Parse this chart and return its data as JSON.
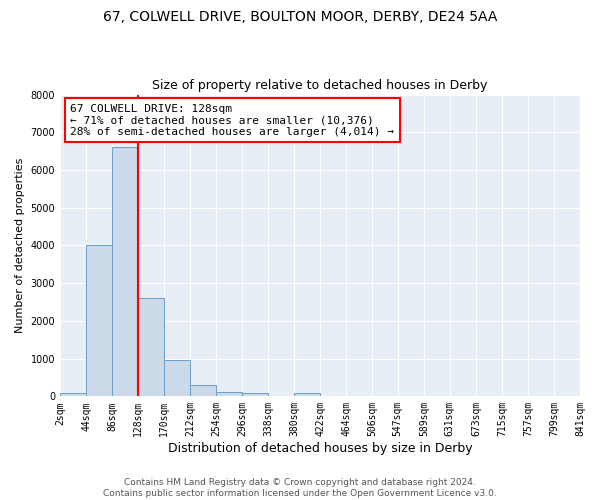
{
  "title1": "67, COLWELL DRIVE, BOULTON MOOR, DERBY, DE24 5AA",
  "title2": "Size of property relative to detached houses in Derby",
  "xlabel": "Distribution of detached houses by size in Derby",
  "ylabel": "Number of detached properties",
  "bin_edges": [
    2,
    44,
    86,
    128,
    170,
    212,
    254,
    296,
    338,
    380,
    422,
    464,
    506,
    547,
    589,
    631,
    673,
    715,
    757,
    799,
    841
  ],
  "bar_heights": [
    100,
    4000,
    6600,
    2600,
    950,
    300,
    125,
    100,
    0,
    100,
    0,
    0,
    0,
    0,
    0,
    0,
    0,
    0,
    0,
    0
  ],
  "bar_color": "#ccd9e8",
  "bar_edge_color": "#6b9ec8",
  "red_line_x": 128,
  "annotation_title": "67 COLWELL DRIVE: 128sqm",
  "annotation_line1": "← 71% of detached houses are smaller (10,376)",
  "annotation_line2": "28% of semi-detached houses are larger (4,014) →",
  "annotation_box_color": "white",
  "annotation_box_edge_color": "red",
  "ylim": [
    0,
    8000
  ],
  "yticks": [
    0,
    1000,
    2000,
    3000,
    4000,
    5000,
    6000,
    7000,
    8000
  ],
  "footer_line1": "Contains HM Land Registry data © Crown copyright and database right 2024.",
  "footer_line2": "Contains public sector information licensed under the Open Government Licence v3.0.",
  "bg_color": "#ffffff",
  "plot_bg_color": "#e8eef5",
  "grid_color": "#ffffff",
  "title1_fontsize": 10,
  "title2_fontsize": 9,
  "xlabel_fontsize": 9,
  "ylabel_fontsize": 8,
  "tick_fontsize": 7,
  "annotation_fontsize": 8,
  "footer_fontsize": 6.5
}
